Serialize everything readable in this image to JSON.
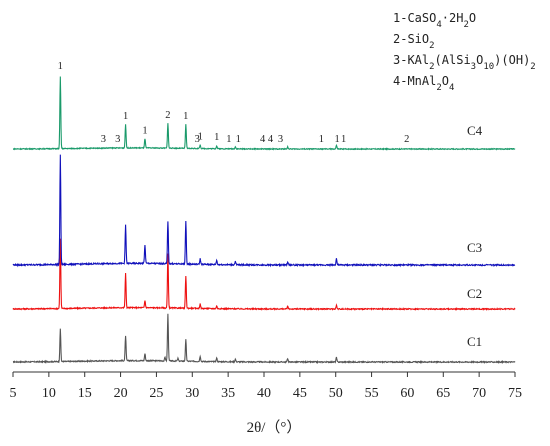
{
  "chart_data": {
    "type": "line",
    "xlabel": "2θ/（°）",
    "ylabel": "",
    "xlim": [
      5,
      75
    ],
    "x_ticks": [
      "5",
      "10",
      "15",
      "20",
      "25",
      "30",
      "35",
      "40",
      "45",
      "50",
      "55",
      "60",
      "65",
      "70",
      "75"
    ],
    "grid": false,
    "legend": {
      "placement": "top-right",
      "entries": [
        {
          "id": "1",
          "formula": [
            "1-CaSO",
            {
              "sub": "4"
            },
            "·2H",
            {
              "sub": "2"
            },
            "O"
          ]
        },
        {
          "id": "2",
          "formula": [
            "2-SiO",
            {
              "sub": "2"
            }
          ]
        },
        {
          "id": "3",
          "formula": [
            "3-KAl",
            {
              "sub": "2"
            },
            "(AlSi",
            {
              "sub": "3"
            },
            "O",
            {
              "sub": "10"
            },
            ")(OH)",
            {
              "sub": "2"
            }
          ]
        },
        {
          "id": "4",
          "formula": [
            "4-MnAl",
            {
              "sub": "2"
            },
            "O",
            {
              "sub": "4"
            }
          ]
        }
      ]
    },
    "series": [
      {
        "name": "C1",
        "color": "#555555",
        "peaks": [
          [
            11.6,
            0.36
          ],
          [
            20.7,
            0.28
          ],
          [
            23.4,
            0.08
          ],
          [
            26.6,
            0.52
          ],
          [
            29.1,
            0.24
          ],
          [
            31.1,
            0.06
          ],
          [
            33.4,
            0.04
          ],
          [
            36.0,
            0.03
          ],
          [
            43.3,
            0.04
          ],
          [
            50.1,
            0.05
          ],
          [
            26.2,
            0.04
          ],
          [
            28.0,
            0.03
          ]
        ]
      },
      {
        "name": "C2",
        "color": "#ee1111",
        "peaks": [
          [
            11.6,
            0.78
          ],
          [
            20.7,
            0.38
          ],
          [
            23.4,
            0.08
          ],
          [
            26.6,
            0.6
          ],
          [
            29.1,
            0.36
          ],
          [
            31.1,
            0.05
          ],
          [
            33.4,
            0.03
          ],
          [
            43.3,
            0.03
          ],
          [
            50.1,
            0.04
          ]
        ]
      },
      {
        "name": "C3",
        "color": "#1111bb",
        "peaks": [
          [
            11.6,
            1.0
          ],
          [
            20.7,
            0.35
          ],
          [
            23.4,
            0.17
          ],
          [
            26.6,
            0.39
          ],
          [
            29.1,
            0.39
          ],
          [
            31.1,
            0.05
          ],
          [
            33.4,
            0.04
          ],
          [
            36.0,
            0.03
          ],
          [
            43.3,
            0.03
          ],
          [
            50.1,
            0.06
          ]
        ]
      },
      {
        "name": "C4",
        "color": "#1a9a6a",
        "peaks": [
          [
            11.6,
            1.0
          ],
          [
            20.7,
            0.33
          ],
          [
            23.4,
            0.13
          ],
          [
            26.6,
            0.35
          ],
          [
            29.1,
            0.33
          ],
          [
            31.1,
            0.05
          ],
          [
            33.4,
            0.04
          ],
          [
            36.0,
            0.03
          ],
          [
            43.3,
            0.03
          ],
          [
            50.1,
            0.05
          ]
        ]
      }
    ],
    "peak_annotations": [
      {
        "x": 11.6,
        "label": "1"
      },
      {
        "x": 17.6,
        "label": "3"
      },
      {
        "x": 19.6,
        "label": "3"
      },
      {
        "x": 20.7,
        "label": "1"
      },
      {
        "x": 23.4,
        "label": "1"
      },
      {
        "x": 26.6,
        "label": "2"
      },
      {
        "x": 29.1,
        "label": "1"
      },
      {
        "x": 30.7,
        "label": "3"
      },
      {
        "x": 31.1,
        "label": "1"
      },
      {
        "x": 33.4,
        "label": "1"
      },
      {
        "x": 35.1,
        "label": "1"
      },
      {
        "x": 36.4,
        "label": "1"
      },
      {
        "x": 39.8,
        "label": "4"
      },
      {
        "x": 40.9,
        "label": "4"
      },
      {
        "x": 42.3,
        "label": "3"
      },
      {
        "x": 48.0,
        "label": "1"
      },
      {
        "x": 50.2,
        "label": "1"
      },
      {
        "x": 51.1,
        "label": "1"
      },
      {
        "x": 59.9,
        "label": "2"
      }
    ]
  }
}
